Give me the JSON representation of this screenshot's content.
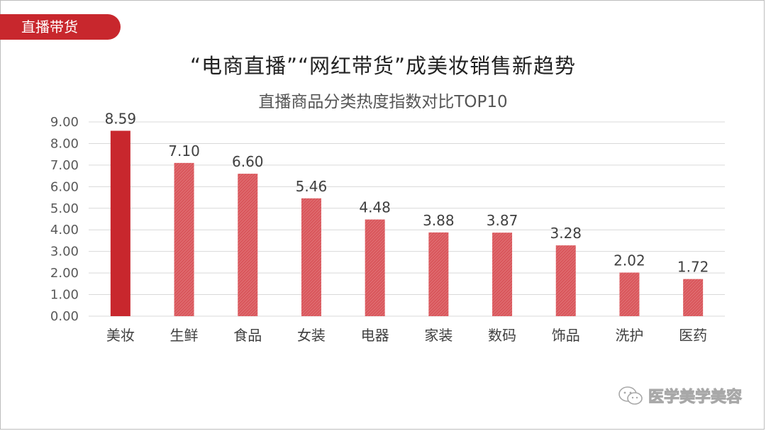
{
  "tag": {
    "label": "直播带货"
  },
  "watermark": {
    "text": "医学美学美容",
    "icon": "wechat-icon"
  },
  "colors": {
    "accent": "#c8272d",
    "bar_primary": "#c8272d",
    "bar_secondary": "#d9575c"
  },
  "chart_data": {
    "type": "bar",
    "title": "“电商直播”“网红带货”成美妆销售新趋势",
    "subtitle": "直播商品分类热度指数对比TOP10",
    "categories": [
      "美妆",
      "生鲜",
      "食品",
      "女装",
      "电器",
      "家装",
      "数码",
      "饰品",
      "洗护",
      "医药"
    ],
    "values": [
      8.59,
      7.1,
      6.6,
      5.46,
      4.48,
      3.88,
      3.87,
      3.28,
      2.02,
      1.72
    ],
    "value_labels": [
      "8.59",
      "7.10",
      "6.60",
      "5.46",
      "4.48",
      "3.88",
      "3.87",
      "3.28",
      "2.02",
      "1.72"
    ],
    "yticks": [
      "0.00",
      "1.00",
      "2.00",
      "3.00",
      "4.00",
      "5.00",
      "6.00",
      "7.00",
      "8.00",
      "9.00"
    ],
    "ylim": [
      0,
      9
    ],
    "xlabel": "",
    "ylabel": "",
    "grid": true,
    "legend": "none"
  }
}
